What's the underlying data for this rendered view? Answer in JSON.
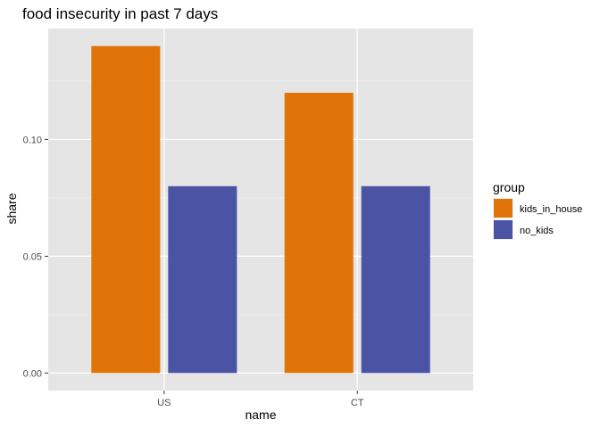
{
  "chart_data": {
    "type": "bar",
    "title": "food insecurity in past 7 days",
    "xlabel": "name",
    "ylabel": "share",
    "categories": [
      "US",
      "CT"
    ],
    "series": [
      {
        "name": "kids_in_house",
        "color": "#E07408",
        "values": [
          0.14,
          0.12
        ]
      },
      {
        "name": "no_kids",
        "color": "#4B53A4",
        "values": [
          0.08,
          0.08
        ]
      }
    ],
    "yticks": [
      0.0,
      0.05,
      0.1
    ],
    "ytick_labels": [
      "0.00",
      "0.05",
      "0.10"
    ],
    "ylim": [
      -0.0075,
      0.1475
    ],
    "legend": {
      "title": "group",
      "position": "right"
    },
    "grid": true,
    "panel_background": "#E5E5E5"
  }
}
